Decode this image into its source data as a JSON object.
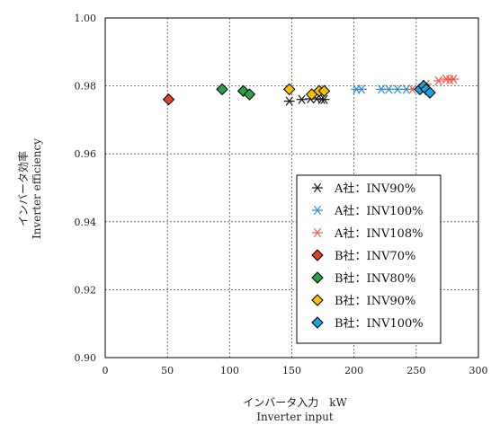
{
  "chart_data": {
    "type": "scatter",
    "xlabel": "インバータ入力　kW",
    "xlabel_en": "Inverter input",
    "ylabel": "インバータ効率",
    "ylabel_en": "Inverter efficiency",
    "xlim": [
      0,
      300
    ],
    "ylim": [
      0.9,
      1.0
    ],
    "x_ticks": [
      0,
      50,
      100,
      150,
      200,
      250,
      300
    ],
    "y_ticks": [
      0.9,
      0.92,
      0.94,
      0.96,
      0.98,
      1.0
    ],
    "x_tick_labels": [
      "0",
      "50",
      "100",
      "150",
      "200",
      "250",
      "300"
    ],
    "y_tick_labels": [
      "0.90",
      "0.92",
      "0.94",
      "0.96",
      "0.98",
      "1.00"
    ],
    "grid": true,
    "legend_position": "bottom-right",
    "series": [
      {
        "name": "A社：INV90%",
        "marker": "asterisk",
        "color": "#1a1a1a",
        "points": [
          [
            148,
            0.9755
          ],
          [
            158,
            0.976
          ],
          [
            165,
            0.9762
          ],
          [
            170,
            0.9762
          ],
          [
            174,
            0.976
          ],
          [
            176,
            0.976
          ]
        ]
      },
      {
        "name": "A社：INV100%",
        "marker": "asterisk",
        "color": "#2e8ad8",
        "points": [
          [
            202,
            0.979
          ],
          [
            206,
            0.979
          ],
          [
            222,
            0.979
          ],
          [
            228,
            0.979
          ],
          [
            235,
            0.979
          ],
          [
            242,
            0.979
          ]
        ]
      },
      {
        "name": "A社：INV108%",
        "marker": "asterisk",
        "color": "#ee5a4a",
        "points": [
          [
            247,
            0.979
          ],
          [
            258,
            0.9805
          ],
          [
            268,
            0.9815
          ],
          [
            274,
            0.982
          ],
          [
            277,
            0.9818
          ],
          [
            280,
            0.982
          ]
        ]
      },
      {
        "name": "B社：INV70%",
        "marker": "diamond",
        "color": "#e0402e",
        "points": [
          [
            51,
            0.976
          ]
        ]
      },
      {
        "name": "B社：INV80%",
        "marker": "diamond",
        "color": "#2aa04a",
        "points": [
          [
            94,
            0.979
          ],
          [
            111,
            0.9785
          ],
          [
            116,
            0.9775
          ]
        ]
      },
      {
        "name": "B社：INV90%",
        "marker": "diamond",
        "color": "#f5c000",
        "points": [
          [
            148,
            0.979
          ],
          [
            166,
            0.9775
          ],
          [
            172,
            0.9785
          ],
          [
            176,
            0.9785
          ]
        ]
      },
      {
        "name": "B社：INV100%",
        "marker": "diamond",
        "color": "#1aa3dd",
        "points": [
          [
            253,
            0.979
          ],
          [
            256,
            0.98
          ],
          [
            258,
            0.979
          ],
          [
            261,
            0.978
          ]
        ]
      }
    ]
  }
}
